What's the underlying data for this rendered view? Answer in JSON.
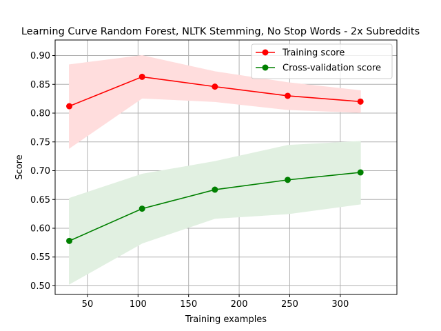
{
  "chart_data": {
    "type": "line",
    "title": "Learning Curve Random Forest, NLTK Stemming, No Stop Words - 2x Subreddits",
    "xlabel": "Training examples",
    "ylabel": "Score",
    "xlim": [
      18,
      356
    ],
    "ylim": [
      0.485,
      0.927
    ],
    "x_ticks": [
      50,
      100,
      150,
      200,
      250,
      300
    ],
    "y_ticks": [
      0.5,
      0.55,
      0.6,
      0.65,
      0.7,
      0.75,
      0.8,
      0.85,
      0.9
    ],
    "grid": true,
    "legend_position": "top-right",
    "x": [
      32,
      104,
      176,
      248,
      320
    ],
    "series": [
      {
        "name": "Training score",
        "color": "#ff0000",
        "band_color": "#ffdddd",
        "values": [
          0.812,
          0.863,
          0.846,
          0.83,
          0.82
        ],
        "lower": [
          0.739,
          0.826,
          0.82,
          0.806,
          0.801
        ],
        "upper": [
          0.884,
          0.9,
          0.872,
          0.853,
          0.839
        ]
      },
      {
        "name": "Cross-validation score",
        "color": "#008000",
        "band_color": "#e1f0e1",
        "values": [
          0.578,
          0.634,
          0.667,
          0.684,
          0.697
        ],
        "lower": [
          0.503,
          0.574,
          0.617,
          0.625,
          0.642
        ],
        "upper": [
          0.652,
          0.694,
          0.716,
          0.744,
          0.751
        ]
      }
    ]
  }
}
